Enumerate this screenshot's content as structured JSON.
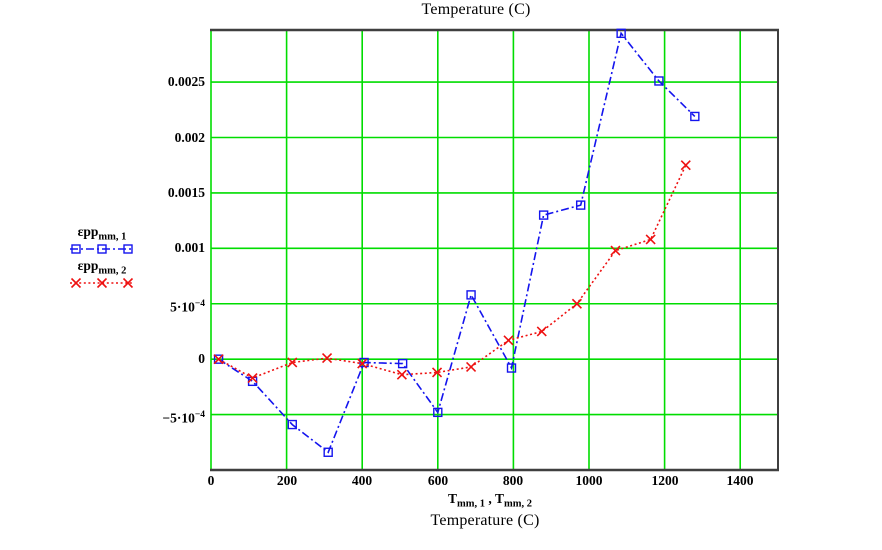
{
  "chart_data": {
    "type": "line",
    "title": "Temperature (C)",
    "x_axis": {
      "variable_labels": [
        {
          "base": "T",
          "sub": "mm, 1"
        },
        {
          "base": "T",
          "sub": "mm, 2"
        }
      ],
      "separator": " , ",
      "unit_label": "Temperature (C)",
      "ticks": [
        0,
        200,
        400,
        600,
        800,
        1000,
        1200,
        1400
      ],
      "range": [
        0,
        1500
      ],
      "grid_step": 200
    },
    "y_axis": {
      "ticks": [
        {
          "value": 0.0025,
          "label": "0.0025"
        },
        {
          "value": 0.002,
          "label": "0.002"
        },
        {
          "value": 0.0015,
          "label": "0.0015"
        },
        {
          "value": 0.001,
          "label": "0.001"
        },
        {
          "value": 0.0005,
          "label": "5·10^−4"
        },
        {
          "value": 0,
          "label": "0"
        },
        {
          "value": -0.0005,
          "label": "−5·10^−4"
        }
      ],
      "range": [
        -0.001,
        0.00297
      ]
    },
    "grid": {
      "show": true,
      "color": "#00dd00"
    },
    "frame_color": "#3f3f3f",
    "series": [
      {
        "name": {
          "base": "εpp",
          "sub": "mm, 1"
        },
        "color": "#1414ee",
        "marker": "square",
        "line_style": "dash-dot",
        "x": [
          20,
          110,
          215,
          310,
          405,
          507,
          600,
          688,
          795,
          880,
          978,
          1085,
          1185,
          1280
        ],
        "y": [
          0.0,
          -0.0002,
          -0.00059,
          -0.00084,
          -3e-05,
          -4e-05,
          -0.00048,
          0.00058,
          -8e-05,
          0.0013,
          0.00139,
          0.00294,
          0.00251,
          0.00219
        ]
      },
      {
        "name": {
          "base": "εpp",
          "sub": "mm, 2"
        },
        "color": "#ee1111",
        "marker": "x",
        "line_style": "dotted",
        "x": [
          20,
          110,
          215,
          307,
          400,
          505,
          598,
          688,
          787,
          875,
          968,
          1070,
          1163,
          1256
        ],
        "y": [
          0.0,
          -0.00017,
          -3e-05,
          1e-05,
          -4e-05,
          -0.00014,
          -0.00012,
          -7e-05,
          0.00017,
          0.00025,
          0.0005,
          0.00098,
          0.00108,
          0.00175
        ]
      }
    ]
  }
}
